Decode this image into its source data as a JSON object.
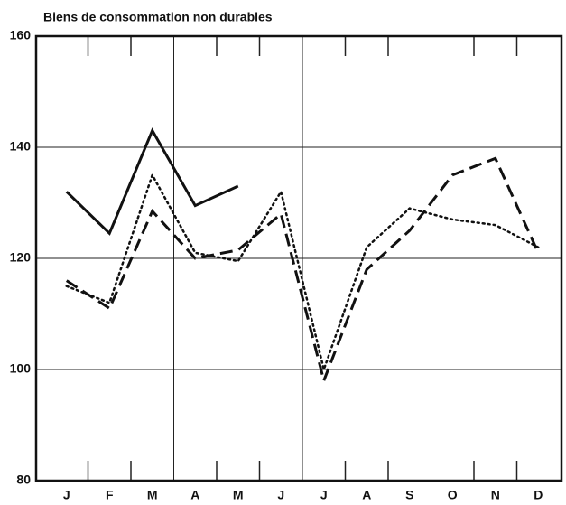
{
  "chart_data": {
    "type": "line",
    "title": "Biens de consommation  non durables",
    "categories": [
      "J",
      "F",
      "M",
      "A",
      "M",
      "J",
      "J",
      "A",
      "S",
      "O",
      "N",
      "D"
    ],
    "series": [
      {
        "color": "#111111",
        "dash": "solid",
        "values": [
          132,
          124.5,
          143,
          129.5,
          133,
          null,
          null,
          null,
          null,
          null,
          null,
          null
        ]
      },
      {
        "color": "#111111",
        "dash": "dotted",
        "values": [
          115,
          112,
          135,
          121,
          119.5,
          132,
          100,
          122,
          129,
          127,
          126,
          122
        ]
      },
      {
        "color": "#111111",
        "dash": "dashed",
        "values": [
          116,
          111,
          128.5,
          120,
          121.5,
          128,
          98,
          118,
          125,
          135,
          138,
          121
        ]
      }
    ],
    "ylim": [
      80,
      160
    ],
    "yticks": [
      80,
      100,
      120,
      140,
      160
    ],
    "grid": true
  }
}
